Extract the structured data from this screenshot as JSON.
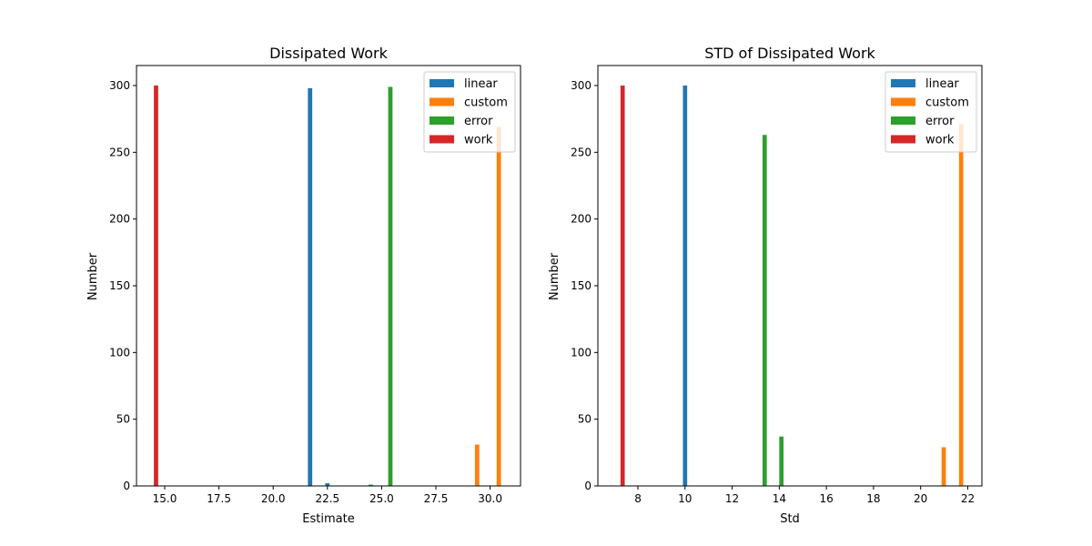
{
  "chart_data": [
    {
      "type": "bar",
      "title": "Dissipated Work",
      "xlabel": "Estimate",
      "ylabel": "Number",
      "xlim": [
        13.7,
        31.4
      ],
      "ylim": [
        0,
        315
      ],
      "xticks": [
        "15.0",
        "17.5",
        "20.0",
        "22.5",
        "25.0",
        "27.5",
        "30.0"
      ],
      "yticks": [
        "0",
        "50",
        "100",
        "150",
        "200",
        "250",
        "300"
      ],
      "bar_width": 0.2,
      "legend_position": "top-right",
      "grid": false,
      "series": [
        {
          "name": "linear",
          "color": "#1f77b4",
          "bars": [
            [
              21.7,
              298
            ],
            [
              22.5,
              2
            ]
          ]
        },
        {
          "name": "custom",
          "color": "#ff7f0e",
          "bars": [
            [
              29.4,
              31
            ],
            [
              30.4,
              269
            ]
          ]
        },
        {
          "name": "error",
          "color": "#2ca02c",
          "bars": [
            [
              24.5,
              1
            ],
            [
              25.4,
              299
            ]
          ]
        },
        {
          "name": "work",
          "color": "#d62728",
          "bars": [
            [
              14.6,
              300
            ]
          ]
        }
      ]
    },
    {
      "type": "bar",
      "title": "STD of Dissipated Work",
      "xlabel": "Std",
      "ylabel": "Number",
      "xlim": [
        6.3,
        22.6
      ],
      "ylim": [
        0,
        315
      ],
      "xticks": [
        "8",
        "10",
        "12",
        "14",
        "16",
        "18",
        "20",
        "22"
      ],
      "yticks": [
        "0",
        "50",
        "100",
        "150",
        "200",
        "250",
        "300"
      ],
      "bar_width": 0.18,
      "legend_position": "top-right",
      "grid": false,
      "series": [
        {
          "name": "linear",
          "color": "#1f77b4",
          "bars": [
            [
              10.0,
              300
            ]
          ]
        },
        {
          "name": "custom",
          "color": "#ff7f0e",
          "bars": [
            [
              20.98,
              29
            ],
            [
              21.72,
              271
            ]
          ]
        },
        {
          "name": "error",
          "color": "#2ca02c",
          "bars": [
            [
              13.38,
              263
            ],
            [
              14.09,
              37
            ]
          ]
        },
        {
          "name": "work",
          "color": "#d62728",
          "bars": [
            [
              7.35,
              300
            ]
          ]
        }
      ]
    }
  ]
}
